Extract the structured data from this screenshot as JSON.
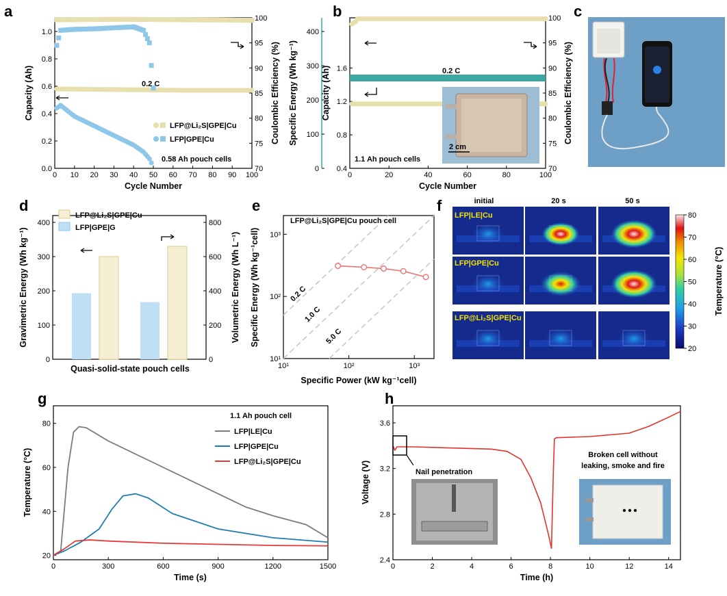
{
  "panels": {
    "a": "a",
    "b": "b",
    "c": "c",
    "d": "d",
    "e": "e",
    "f": "f",
    "g": "g",
    "h": "h"
  },
  "colors": {
    "li2s": "#e8dfae",
    "li2s_edge": "#d9cb8d",
    "gpe_cu": "#8ec7ea",
    "le": "#7b7b7b",
    "gpe_line": "#1f7db0",
    "li2s_line": "#e53a3a",
    "teal": "#3aa7a3",
    "e_line": "#e87272",
    "h_line": "#e2332b",
    "photo_bg": "#6e9fc7"
  },
  "chart_data": [
    {
      "id": "a",
      "type": "scatter",
      "title": "",
      "xlabel": "Cycle Number",
      "ylabel": "Capacity (Ah)",
      "y2label": "Coulombic Efficiency (%)",
      "y3label": "Specific Energy (Wh kg⁻¹)",
      "xlim": [
        0,
        100
      ],
      "ylim": [
        0,
        1.1
      ],
      "y2lim": [
        70,
        100
      ],
      "y3lim": [
        0,
        440
      ],
      "xticks": [
        0,
        10,
        20,
        30,
        40,
        50,
        60,
        70,
        80,
        90,
        100
      ],
      "yticks": [
        "0.0",
        "0.2",
        "0.4",
        "0.6",
        "0.8",
        "1.0"
      ],
      "y2ticks": [
        70,
        75,
        80,
        85,
        90,
        95,
        100
      ],
      "y3ticks": [
        0,
        100,
        200,
        300,
        400
      ],
      "legend": [
        "LFP@Li₂S|GPE|Cu",
        "LFP|GPE|Cu"
      ],
      "annotations": [
        "0.2 C",
        "0.58 Ah pouch cells"
      ],
      "series": [
        {
          "name": "LFP@Li₂S|GPE|Cu capacity",
          "cycle_range": [
            1,
            100
          ],
          "values": [
            0.58,
            0.575,
            0.57,
            0.57
          ]
        },
        {
          "name": "LFP@Li₂S|GPE|Cu CE (%)",
          "cycle_range": [
            1,
            100
          ],
          "values": [
            99.6,
            99.7,
            99.6,
            99.5
          ]
        },
        {
          "name": "LFP|GPE|Cu capacity",
          "x": [
            1,
            3,
            10,
            20,
            30,
            40,
            45,
            48,
            49
          ],
          "values": [
            0.44,
            0.46,
            0.38,
            0.31,
            0.24,
            0.17,
            0.12,
            0.07,
            0.04
          ]
        },
        {
          "name": "LFP|GPE|Cu CE (%)",
          "x": [
            1,
            3,
            10,
            20,
            30,
            40,
            45,
            48,
            50
          ],
          "values": [
            94.5,
            97.5,
            97.7,
            97.8,
            98,
            98.2,
            97.5,
            95,
            86
          ]
        }
      ]
    },
    {
      "id": "b",
      "type": "scatter",
      "xlabel": "Cycle Number",
      "ylabel": "Capacity (Ah)",
      "y2label": "Coulombic Efficiency (%)",
      "xlim": [
        0,
        100
      ],
      "ylim": [
        0.4,
        2.2
      ],
      "y2lim": [
        70,
        100
      ],
      "xticks": [
        0,
        20,
        40,
        60,
        80,
        100
      ],
      "yticks": [
        "0.4",
        "0.8",
        "1.2",
        "1.6"
      ],
      "y2ticks": [
        70,
        75,
        80,
        85,
        90,
        95,
        100
      ],
      "annotations": [
        "0.2 C",
        "1.1 Ah  pouch cells",
        "2 cm"
      ],
      "series": [
        {
          "name": "CE (%)",
          "cycle_range": [
            1,
            100
          ],
          "values": [
            98.5,
            99.7,
            99.8
          ]
        },
        {
          "name": "Capacity",
          "cycle_range": [
            1,
            100
          ],
          "values": [
            1.17,
            1.17,
            1.17
          ]
        },
        {
          "name": "Specific energy band",
          "cycle_range": [
            1,
            100
          ],
          "values": [
            1.48,
            1.48
          ]
        }
      ]
    },
    {
      "id": "d",
      "type": "bar",
      "xlabel": "Quasi-solid-state pouch cells",
      "ylabel": "Gravimetric Energy (Wh kg⁻¹)",
      "y2label": "Volumetric Energy (Wh L⁻¹)",
      "ylim": [
        0,
        420
      ],
      "y2lim": [
        0,
        840
      ],
      "yticks": [
        0,
        100,
        200,
        300,
        400
      ],
      "y2ticks": [
        0,
        200,
        400,
        600,
        800
      ],
      "legend": [
        "LFP@Li₂S|GPE|Cu",
        "LFP|GPE|G"
      ],
      "series": [
        {
          "name": "LFP|GPE|G",
          "values": [
            193,
            167
          ]
        },
        {
          "name": "LFP@Li₂S|GPE|Cu",
          "values": [
            300,
            330
          ]
        }
      ]
    },
    {
      "id": "e",
      "type": "line",
      "title": "LFP@Li₂S|GPE|Cu pouch cell",
      "xlabel": "Specific Power (kW kg⁻¹cell)",
      "ylabel": "Specific Energy (Wh kg⁻¹cell)",
      "xlim": [
        10,
        2000
      ],
      "ylim": [
        10,
        2000
      ],
      "scale": "log",
      "xticks": [
        "10¹",
        "10²",
        "10³"
      ],
      "yticks": [
        "10¹",
        "10²",
        "10³"
      ],
      "rate_lines": [
        "0.2 C",
        "1.0 C",
        "5.0 C"
      ],
      "x": [
        68,
        170,
        340,
        680,
        1500
      ],
      "values": [
        310,
        295,
        280,
        255,
        205
      ]
    },
    {
      "id": "f",
      "type": "heatmap",
      "columns": [
        "initial",
        "20 s",
        "50 s"
      ],
      "rows": [
        "LFP|LE|Cu",
        "LFP|GPE|Cu",
        "LFP@Li₂S|GPE|Cu"
      ],
      "colorbar_label": "Temperature (°C)",
      "colorbar_ticks": [
        20,
        30,
        40,
        50,
        60,
        70,
        80
      ]
    },
    {
      "id": "g",
      "type": "line",
      "title": "1.1 Ah pouch cell",
      "xlabel": "Time (s)",
      "ylabel": "Temperature (°C)",
      "xlim": [
        0,
        1500
      ],
      "ylim": [
        18,
        88
      ],
      "xticks": [
        0,
        300,
        600,
        900,
        1200,
        1500
      ],
      "yticks": [
        20,
        40,
        60,
        80
      ],
      "series": [
        {
          "name": "LFP|LE|Cu",
          "x": [
            0,
            40,
            80,
            110,
            140,
            180,
            300,
            600,
            900,
            1050,
            1200,
            1380,
            1500
          ],
          "values": [
            20,
            22,
            60,
            76,
            78.5,
            78,
            72,
            60,
            48,
            42,
            38,
            34,
            28
          ]
        },
        {
          "name": "LFP|GPE|Cu",
          "x": [
            0,
            60,
            150,
            250,
            320,
            380,
            450,
            520,
            650,
            900,
            1200,
            1500
          ],
          "values": [
            20,
            22,
            26,
            32,
            41,
            47,
            48,
            46,
            39,
            32,
            28,
            26
          ]
        },
        {
          "name": "LFP@Li₂S|GPE|Cu",
          "x": [
            0,
            60,
            120,
            200,
            300,
            600,
            900,
            1200,
            1500
          ],
          "values": [
            20,
            23,
            26.5,
            27,
            26.5,
            25.5,
            25,
            24.5,
            24.3
          ]
        }
      ]
    },
    {
      "id": "h",
      "type": "line",
      "xlabel": "Time (h)",
      "ylabel": "Voltage (V)",
      "xlim": [
        0,
        14.6
      ],
      "ylim": [
        2.4,
        3.75
      ],
      "xticks": [
        0,
        2,
        4,
        6,
        8,
        10,
        12,
        14
      ],
      "yticks": [
        "2.4",
        "2.8",
        "3.2",
        "3.6"
      ],
      "annotations": [
        "Nail penetration",
        "Broken cell without",
        "leaking, smoke and fire"
      ],
      "x": [
        0,
        0.1,
        0.2,
        1,
        3,
        5,
        5.8,
        6.5,
        7,
        7.5,
        7.9,
        8.05,
        8.15,
        8.2,
        8.3,
        10,
        12,
        13,
        14,
        14.6
      ],
      "values": [
        3.4,
        3.36,
        3.39,
        3.39,
        3.38,
        3.37,
        3.35,
        3.28,
        3.12,
        2.9,
        2.62,
        2.5,
        3.2,
        3.46,
        3.47,
        3.48,
        3.51,
        3.57,
        3.65,
        3.7
      ]
    }
  ]
}
